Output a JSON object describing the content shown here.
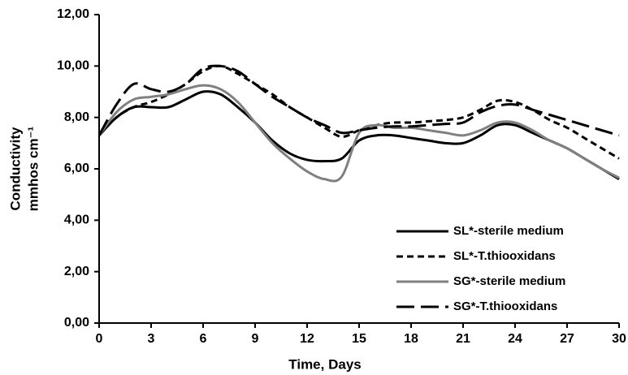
{
  "chart_data": {
    "type": "line",
    "xlabel": "Time, Days",
    "ylabel": [
      "Conductivity",
      "mmhos cm⁻¹"
    ],
    "x": [
      0,
      1,
      2,
      3,
      4,
      5,
      6,
      7,
      8,
      9,
      10,
      11,
      12,
      13,
      14,
      15,
      16,
      17,
      18,
      19,
      20,
      21,
      22,
      23,
      24,
      25,
      26,
      27,
      28,
      29,
      30
    ],
    "series": [
      {
        "name": "SL*-sterile medium",
        "color": "#000000",
        "dash": "solid",
        "values": [
          7.3,
          8.0,
          8.4,
          8.4,
          8.4,
          8.7,
          9.0,
          8.9,
          8.4,
          7.8,
          7.1,
          6.6,
          6.35,
          6.3,
          6.4,
          7.1,
          7.3,
          7.3,
          7.2,
          7.1,
          7.0,
          7.0,
          7.3,
          7.7,
          7.7,
          7.4,
          7.1,
          6.8,
          6.4,
          6.0,
          5.6
        ]
      },
      {
        "name": "SL*-T.thiooxidans",
        "color": "#000000",
        "dash": "short",
        "values": [
          7.3,
          8.0,
          8.4,
          8.6,
          8.9,
          9.3,
          9.8,
          10.0,
          9.7,
          9.3,
          8.9,
          8.4,
          8.0,
          7.6,
          7.25,
          7.5,
          7.7,
          7.8,
          7.8,
          7.85,
          7.9,
          8.0,
          8.3,
          8.65,
          8.6,
          8.3,
          7.9,
          7.6,
          7.2,
          6.8,
          6.4
        ]
      },
      {
        "name": "SG*-sterile medium",
        "color": "#808080",
        "dash": "solid",
        "values": [
          7.3,
          8.2,
          8.7,
          8.8,
          8.9,
          9.1,
          9.25,
          9.1,
          8.6,
          7.8,
          7.0,
          6.4,
          5.9,
          5.6,
          5.7,
          7.4,
          7.7,
          7.6,
          7.6,
          7.5,
          7.4,
          7.3,
          7.5,
          7.8,
          7.8,
          7.5,
          7.1,
          6.8,
          6.4,
          6.0,
          5.65
        ]
      },
      {
        "name": "SG*-T.thiooxidans",
        "color": "#000000",
        "dash": "long",
        "values": [
          7.3,
          8.5,
          9.3,
          9.1,
          9.0,
          9.3,
          9.9,
          10.0,
          9.8,
          9.3,
          8.8,
          8.4,
          8.0,
          7.7,
          7.4,
          7.5,
          7.6,
          7.65,
          7.65,
          7.7,
          7.75,
          7.8,
          8.2,
          8.45,
          8.5,
          8.3,
          8.1,
          7.9,
          7.7,
          7.5,
          7.3
        ]
      }
    ],
    "xlim": [
      0,
      30
    ],
    "xticks": [
      0,
      3,
      6,
      9,
      12,
      15,
      18,
      21,
      24,
      27,
      30
    ],
    "ylim": [
      0,
      12
    ],
    "yticks": [
      {
        "value": 0,
        "label": "0,00"
      },
      {
        "value": 2,
        "label": "2,00"
      },
      {
        "value": 4,
        "label": "4,00"
      },
      {
        "value": 6,
        "label": "6,00"
      },
      {
        "value": 8,
        "label": "8,00"
      },
      {
        "value": 10,
        "label": "10,00"
      },
      {
        "value": 12,
        "label": "12,00"
      }
    ],
    "legend": "lower right",
    "grid": false
  }
}
